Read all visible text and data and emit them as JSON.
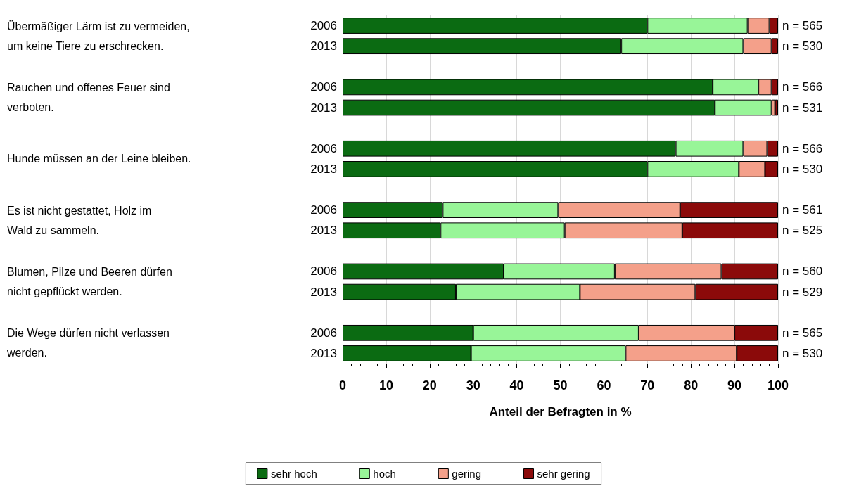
{
  "chart_data": {
    "type": "bar",
    "orientation": "horizontal",
    "stacked": true,
    "xlabel": "Anteil der Befragten in %",
    "categories": [
      "2006",
      "2013",
      null,
      "2006",
      "2013",
      null,
      "2006",
      "2013",
      null,
      "2006",
      "2013",
      null,
      "2006",
      "2013",
      null,
      "2006",
      "2013"
    ],
    "series": [
      {
        "name": "sehr hoch",
        "color": "#0b6b12",
        "values": [
          70,
          64,
          null,
          85,
          85.5,
          null,
          76.5,
          70,
          null,
          23,
          22.5,
          null,
          37,
          26,
          null,
          30,
          29.5
        ]
      },
      {
        "name": "hoch",
        "color": "#98f598",
        "values": [
          23,
          28,
          null,
          10.5,
          13,
          null,
          15.5,
          21,
          null,
          26.5,
          28.5,
          null,
          25.5,
          28.5,
          null,
          38,
          35.5
        ]
      },
      {
        "name": "gering",
        "color": "#f4a08a",
        "values": [
          5,
          6.5,
          null,
          3,
          0.8,
          null,
          5.5,
          6,
          null,
          28,
          27,
          null,
          24.5,
          26.5,
          null,
          22,
          25.5
        ]
      },
      {
        "name": "sehr gering",
        "color": "#8b0a0a",
        "values": [
          2,
          1.5,
          null,
          1.5,
          0.7,
          null,
          2.5,
          3,
          null,
          22.5,
          22,
          null,
          13,
          19,
          null,
          10,
          9.5
        ]
      }
    ],
    "xlim": [
      0,
      100
    ],
    "xticks": [
      0,
      10,
      20,
      30,
      40,
      50,
      60,
      70,
      80,
      90,
      100
    ],
    "grid": "x",
    "legend": "bottom",
    "annotations": [
      "Übermäßiger Lärm ist zu vermeiden,\num keine Tiere zu erschrecken.",
      "Rauchen und offenes Feuer sind\nverboten.",
      "Hunde müssen an der Leine bleiben.",
      "Es ist nicht gestattet, Holz im\nWald zu sammeln.",
      "Blumen, Pilze und Beeren dürfen\nnicht gepflückt werden.",
      "Die Wege dürfen nicht verlassen\nwerden.",
      "n = 565",
      "n = 530",
      "n = 566",
      "n = 531",
      "n = 566",
      "n = 530",
      "n = 561",
      "n = 525",
      "n = 560",
      "n = 529",
      "n = 565",
      "n = 530"
    ]
  }
}
